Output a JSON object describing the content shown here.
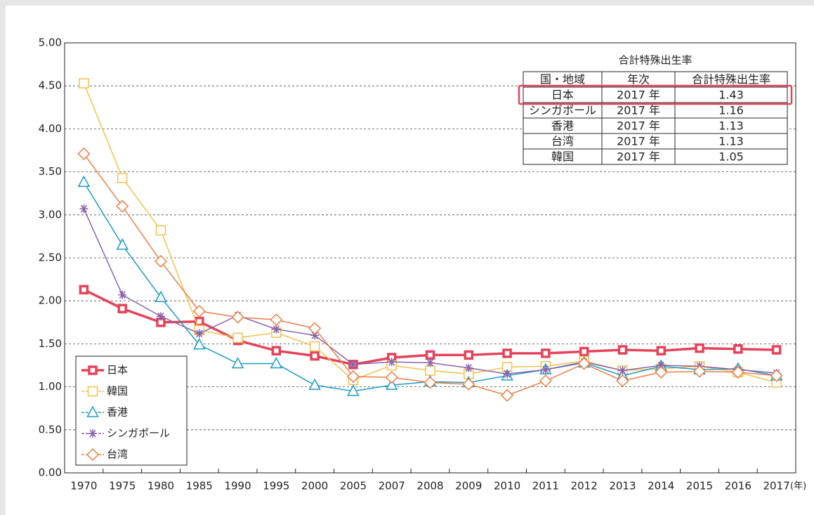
{
  "chart_data": {
    "type": "line",
    "categories": [
      "1970",
      "1975",
      "1980",
      "1985",
      "1990",
      "1995",
      "2000",
      "2005",
      "2007",
      "2008",
      "2009",
      "2010",
      "2011",
      "2012",
      "2013",
      "2014",
      "2015",
      "2016",
      "2017"
    ],
    "x_unit": "(年)",
    "ylim": [
      0,
      5
    ],
    "yticks": [
      {
        "value": 0,
        "label": "0.00"
      },
      {
        "value": 0.5,
        "label": "0.50"
      },
      {
        "value": 1,
        "label": "1.00"
      },
      {
        "value": 1.5,
        "label": "1.50"
      },
      {
        "value": 2,
        "label": "2.00"
      },
      {
        "value": 2.5,
        "label": "2.50"
      },
      {
        "value": 3,
        "label": "3.00"
      },
      {
        "value": 3.5,
        "label": "3.50"
      },
      {
        "value": 4,
        "label": "4.00"
      },
      {
        "value": 4.5,
        "label": "4.50"
      },
      {
        "value": 5,
        "label": "5.00"
      }
    ],
    "grid": true,
    "legend": "bottom-left",
    "series": [
      {
        "name": "日本",
        "color": "#e5435a",
        "marker": "square-bold",
        "values": [
          2.13,
          1.91,
          1.75,
          1.76,
          1.54,
          1.42,
          1.36,
          1.26,
          1.34,
          1.37,
          1.37,
          1.39,
          1.39,
          1.41,
          1.43,
          1.42,
          1.45,
          1.44,
          1.43
        ]
      },
      {
        "name": "韓国",
        "color": "#f5c04a",
        "marker": "square",
        "values": [
          4.53,
          3.43,
          2.82,
          1.66,
          1.57,
          1.63,
          1.47,
          1.08,
          1.25,
          1.19,
          1.15,
          1.23,
          1.24,
          1.3,
          1.19,
          1.21,
          1.24,
          1.17,
          1.05
        ]
      },
      {
        "name": "香港",
        "color": "#1b9bc7",
        "marker": "triangle",
        "values": [
          3.38,
          2.65,
          2.04,
          1.49,
          1.27,
          1.27,
          1.02,
          0.95,
          1.02,
          1.06,
          1.05,
          1.13,
          1.2,
          1.28,
          1.13,
          1.24,
          1.2,
          1.21,
          1.13
        ]
      },
      {
        "name": "シンガポール",
        "color": "#8a62ab",
        "marker": "star",
        "values": [
          3.07,
          2.07,
          1.82,
          1.62,
          1.83,
          1.67,
          1.6,
          1.26,
          1.29,
          1.28,
          1.22,
          1.15,
          1.2,
          1.29,
          1.19,
          1.25,
          1.24,
          1.2,
          1.16
        ]
      },
      {
        "name": "台湾",
        "color": "#ef7d44",
        "marker": "diamond",
        "values": [
          3.71,
          3.1,
          2.46,
          1.88,
          1.81,
          1.78,
          1.68,
          1.12,
          1.11,
          1.05,
          1.03,
          0.9,
          1.07,
          1.27,
          1.07,
          1.17,
          1.18,
          1.17,
          1.13
        ]
      }
    ],
    "table": {
      "title": "合計特殊出生率",
      "header": [
        "国・地域",
        "年次",
        "合計特殊出生率"
      ],
      "rows": [
        [
          "日本",
          "2017 年",
          "1.43"
        ],
        [
          "シンガポール",
          "2017 年",
          "1.16"
        ],
        [
          "香港",
          "2017 年",
          "1.13"
        ],
        [
          "台湾",
          "2017 年",
          "1.13"
        ],
        [
          "韓国",
          "2017 年",
          "1.05"
        ]
      ],
      "highlight_row": 0
    }
  }
}
